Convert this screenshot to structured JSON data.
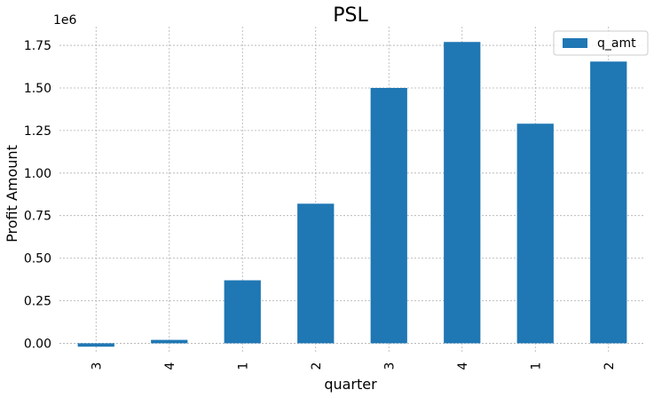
{
  "chart_data": {
    "type": "bar",
    "title": "PSL",
    "xlabel": "quarter",
    "ylabel": "Profit Amount",
    "y_offset_label": "1e6",
    "categories": [
      "3",
      "4",
      "1",
      "2",
      "3",
      "4",
      "1",
      "2"
    ],
    "series": [
      {
        "name": "q_amt",
        "color": "#1f77b4",
        "values": [
          -0.02,
          0.02,
          0.37,
          0.82,
          1.5,
          1.77,
          1.29,
          1.655
        ]
      }
    ],
    "ylim": [
      -0.05,
      1.86
    ],
    "yticks": [
      0.0,
      0.25,
      0.5,
      0.75,
      1.0,
      1.25,
      1.5,
      1.75
    ],
    "ytick_labels": [
      "0.00",
      "0.25",
      "0.50",
      "0.75",
      "1.00",
      "1.25",
      "1.50",
      "1.75"
    ],
    "grid": true,
    "legend_position": "top-right"
  }
}
